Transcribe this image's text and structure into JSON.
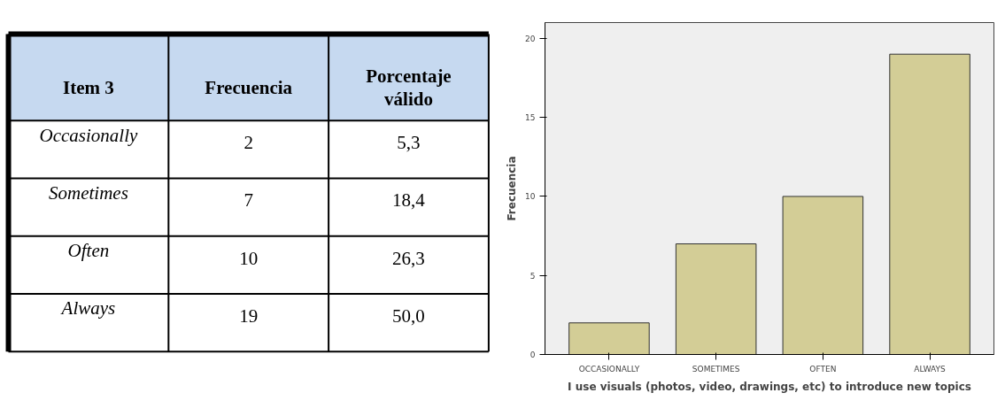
{
  "chart_data": [
    {
      "type": "other",
      "categories": [
        "Item 3",
        "Frecuencia",
        "Porcentaje válido"
      ],
      "annotations": [
        "Occasionally",
        "2",
        "5,3",
        "Sometimes",
        "7",
        "18,4",
        "Often",
        "10",
        "26,3",
        "Always",
        "19",
        "50,0"
      ]
    },
    {
      "type": "bar",
      "xlabel": "I use visuals (photos, video, drawings, etc) to introduce new topics",
      "ylabel": "Frecuencia",
      "categories": [
        "OCCASIONALLY",
        "SOMETIMES",
        "OFTEN",
        "ALWAYS"
      ],
      "values": [
        2,
        7,
        10,
        19
      ],
      "color": "#d3cd96",
      "ylim": [
        0,
        21
      ],
      "yticks": [
        0,
        5,
        10,
        15,
        20
      ],
      "grid": false
    }
  ]
}
